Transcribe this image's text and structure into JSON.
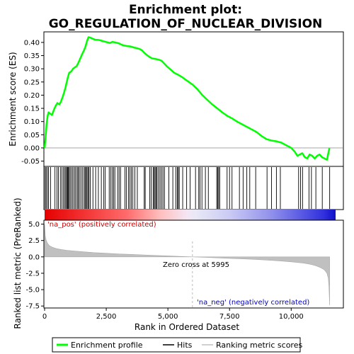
{
  "chart_data": {
    "type": "line",
    "title_line1": "Enrichment plot:",
    "title_line2": "GO_REGULATION_OF_NUCLEAR_DIVISION",
    "top_panel": {
      "ylabel": "Enrichment score (ES)",
      "ylim": [
        -0.07,
        0.44
      ],
      "yticks": [
        -0.05,
        0.0,
        0.05,
        0.1,
        0.15,
        0.2,
        0.25,
        0.3,
        0.35,
        0.4
      ],
      "ytick_labels": [
        "-0.05",
        "0.00",
        "0.05",
        "0.10",
        "0.15",
        "0.20",
        "0.25",
        "0.30",
        "0.35",
        "0.40"
      ],
      "series": [
        {
          "name": "Enrichment profile",
          "color": "#00ff00",
          "x": [
            0,
            40,
            80,
            120,
            160,
            220,
            300,
            380,
            450,
            520,
            600,
            660,
            720,
            790,
            850,
            900,
            950,
            1000,
            1080,
            1150,
            1220,
            1300,
            1380,
            1450,
            1520,
            1600,
            1660,
            1720,
            1780,
            1850,
            1950,
            2050,
            2150,
            2250,
            2350,
            2450,
            2550,
            2650,
            2750,
            2850,
            2950,
            3050,
            3150,
            3250,
            3350,
            3450,
            3550,
            3650,
            3750,
            3850,
            3950,
            4050,
            4150,
            4250,
            4350,
            4450,
            4550,
            4650,
            4750,
            4850,
            4950,
            5100,
            5250,
            5400,
            5550,
            5700,
            5850,
            6000,
            6200,
            6400,
            6600,
            6800,
            7000,
            7200,
            7400,
            7600,
            7800,
            8000,
            8200,
            8400,
            8600,
            8800,
            9000,
            9200,
            9400,
            9600,
            9800,
            10000,
            10150,
            10250,
            10350,
            10450,
            10550,
            10650,
            10750,
            10850,
            10950,
            11050,
            11150,
            11250,
            11350,
            11450,
            11550
          ],
          "values": [
            0.0,
            0.04,
            0.09,
            0.12,
            0.135,
            0.13,
            0.125,
            0.145,
            0.16,
            0.17,
            0.165,
            0.175,
            0.19,
            0.21,
            0.23,
            0.25,
            0.27,
            0.285,
            0.29,
            0.3,
            0.305,
            0.31,
            0.325,
            0.34,
            0.355,
            0.37,
            0.385,
            0.405,
            0.42,
            0.418,
            0.414,
            0.41,
            0.41,
            0.408,
            0.405,
            0.403,
            0.4,
            0.398,
            0.402,
            0.4,
            0.398,
            0.395,
            0.39,
            0.388,
            0.386,
            0.385,
            0.383,
            0.38,
            0.378,
            0.375,
            0.37,
            0.36,
            0.352,
            0.345,
            0.34,
            0.338,
            0.336,
            0.334,
            0.33,
            0.32,
            0.31,
            0.298,
            0.285,
            0.278,
            0.27,
            0.26,
            0.25,
            0.24,
            0.222,
            0.2,
            0.182,
            0.165,
            0.15,
            0.135,
            0.122,
            0.112,
            0.1,
            0.09,
            0.08,
            0.07,
            0.06,
            0.045,
            0.033,
            0.028,
            0.025,
            0.02,
            0.01,
            0.0,
            -0.015,
            -0.03,
            -0.025,
            -0.02,
            -0.035,
            -0.04,
            -0.025,
            -0.03,
            -0.04,
            -0.03,
            -0.025,
            -0.035,
            -0.04,
            -0.045,
            0.0
          ]
        }
      ]
    },
    "hits_panel": {
      "name": "Hits",
      "hit_positions": [
        20,
        60,
        110,
        160,
        240,
        420,
        500,
        560,
        640,
        700,
        760,
        820,
        860,
        900,
        930,
        960,
        1000,
        1040,
        1100,
        1150,
        1210,
        1260,
        1320,
        1360,
        1410,
        1470,
        1530,
        1600,
        1640,
        1680,
        1720,
        1760,
        1800,
        1850,
        1960,
        2070,
        2180,
        2300,
        2400,
        2460,
        2620,
        2680,
        2740,
        2800,
        2850,
        2960,
        3020,
        3080,
        3260,
        3320,
        3400,
        3460,
        3520,
        3580,
        3660,
        3760,
        4040,
        4080,
        4260,
        4320,
        4400,
        4440,
        4480,
        4520,
        4560,
        4620,
        4680,
        4740,
        4800,
        4860,
        5040,
        5200,
        5320,
        5380,
        5420,
        5460,
        5600,
        5760,
        5900,
        6120,
        6250,
        6300,
        6380,
        6520,
        6640,
        6980,
        7020,
        7060,
        7100,
        7400,
        7500,
        7600,
        7900,
        8050,
        8200,
        8320,
        8560,
        9020,
        9200,
        9400,
        9560,
        10300,
        10380,
        10460,
        10720,
        10820,
        11000,
        11260,
        11560
      ]
    },
    "bottom_panel": {
      "ylabel": "Ranked list metric (PreRanked)",
      "ylim": [
        -7.8,
        5.6
      ],
      "yticks": [
        -7.5,
        -5.0,
        -2.5,
        0.0,
        2.5,
        5.0
      ],
      "ytick_labels": [
        "-7.5",
        "-5.0",
        "-2.5",
        "0.0",
        "2.5",
        "5.0"
      ],
      "series": [
        {
          "name": "Ranking metric scores",
          "color": "#c0c0c0",
          "x": [
            0,
            30,
            60,
            100,
            150,
            200,
            300,
            400,
            500,
            700,
            900,
            1200,
            1500,
            2000,
            2500,
            3000,
            3500,
            4000,
            4500,
            5000,
            5500,
            5995,
            6500,
            7000,
            7500,
            8000,
            8500,
            9000,
            9500,
            10000,
            10500,
            10800,
            11000,
            11200,
            11350,
            11450,
            11500,
            11530,
            11560
          ],
          "values": [
            5.0,
            3.2,
            2.6,
            2.2,
            1.9,
            1.7,
            1.5,
            1.35,
            1.25,
            1.1,
            1.0,
            0.9,
            0.8,
            0.65,
            0.55,
            0.45,
            0.38,
            0.3,
            0.22,
            0.15,
            0.07,
            0.0,
            -0.07,
            -0.15,
            -0.22,
            -0.3,
            -0.38,
            -0.48,
            -0.6,
            -0.75,
            -0.95,
            -1.15,
            -1.35,
            -1.65,
            -2.0,
            -2.5,
            -3.2,
            -4.5,
            -7.4
          ]
        }
      ],
      "annotations": {
        "pos_label": "'na_pos' (positively correlated)",
        "neg_label": "'na_neg' (negatively correlated)",
        "zero_cross_label": "Zero cross at 5995",
        "zero_cross": 5995
      }
    },
    "xlabel": "Rank in Ordered Dataset",
    "xlim": [
      0,
      11800
    ],
    "xticks": [
      0,
      2500,
      5000,
      7500,
      10000
    ],
    "xtick_labels": [
      "0",
      "2,500",
      "5,000",
      "7,500",
      "10,000"
    ],
    "legend": {
      "placement": "bottom",
      "entries": [
        "Enrichment profile",
        "Hits",
        "Ranking metric scores"
      ]
    },
    "colors": {
      "enrichment_line": "#00ff00",
      "hits": "#000000",
      "metric_fill": "#c0c0c0",
      "pos_text": "#cc0000",
      "neg_text": "#0000cc",
      "zero_line": "#bbbbbb"
    }
  }
}
